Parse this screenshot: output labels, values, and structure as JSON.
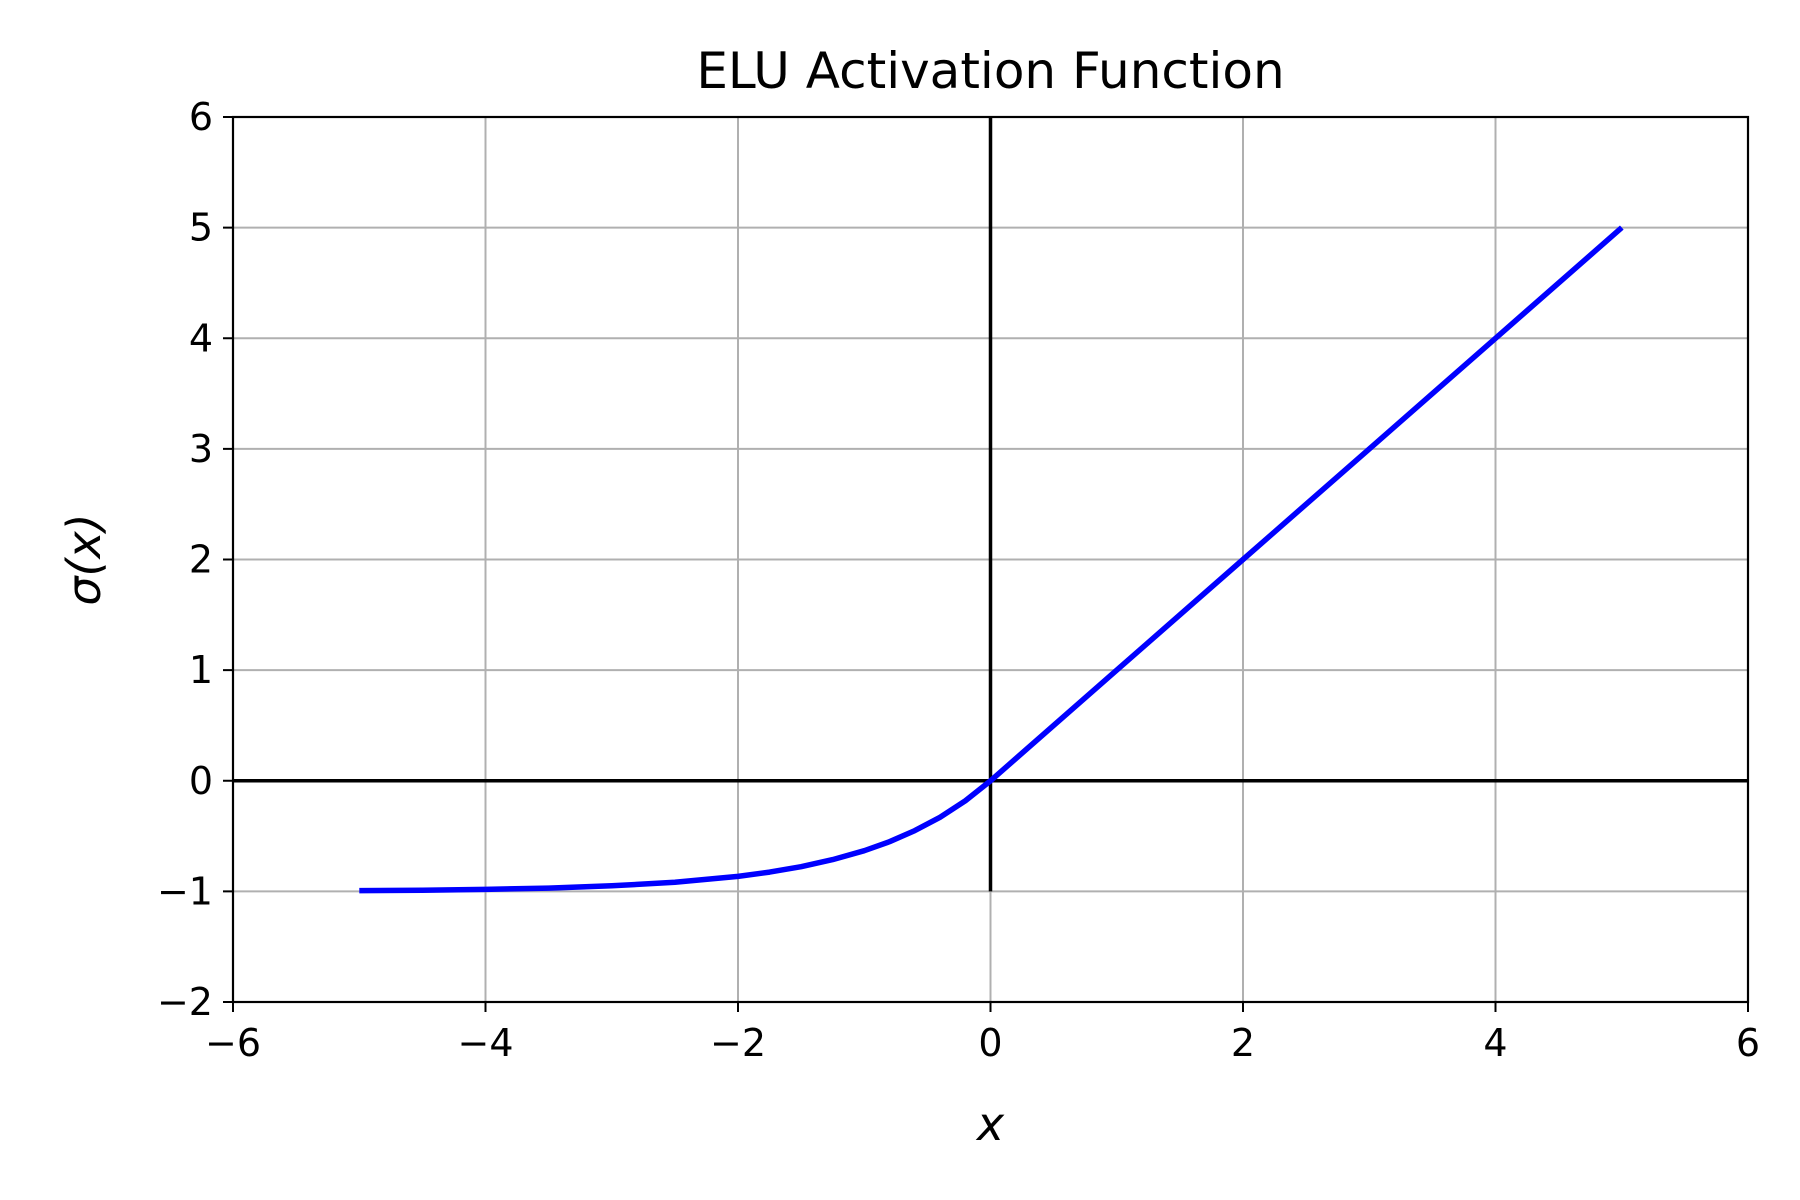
{
  "chart_data": {
    "type": "line",
    "title": "ELU Activation Function",
    "xlabel": "x",
    "ylabel": "σ(x)",
    "xlim": [
      -6,
      6
    ],
    "ylim": [
      -2,
      6
    ],
    "xticks": [
      -6,
      -4,
      -2,
      0,
      2,
      4,
      6
    ],
    "xtick_labels": [
      "−6",
      "−4",
      "−2",
      "0",
      "2",
      "4",
      "6"
    ],
    "yticks": [
      -2,
      -1,
      0,
      1,
      2,
      3,
      4,
      5,
      6
    ],
    "ytick_labels": [
      "−2",
      "−1",
      "0",
      "1",
      "2",
      "3",
      "4",
      "5",
      "6"
    ],
    "grid": true,
    "series": [
      {
        "color": "#0000ff",
        "x": [
          -5,
          -4.5,
          -4,
          -3.5,
          -3,
          -2.5,
          -2,
          -1.75,
          -1.5,
          -1.25,
          -1,
          -0.8,
          -0.6,
          -0.4,
          -0.2,
          0,
          1,
          2,
          3,
          4,
          5
        ],
        "y": [
          -0.993,
          -0.989,
          -0.982,
          -0.97,
          -0.95,
          -0.918,
          -0.865,
          -0.826,
          -0.777,
          -0.713,
          -0.632,
          -0.551,
          -0.451,
          -0.33,
          -0.181,
          0,
          1,
          2,
          3,
          4,
          5
        ]
      }
    ],
    "reference_lines": {
      "horizontal_y": 0,
      "vertical": {
        "x": 0,
        "y_from": -1,
        "y_to": 6
      },
      "color": "#000000"
    }
  }
}
